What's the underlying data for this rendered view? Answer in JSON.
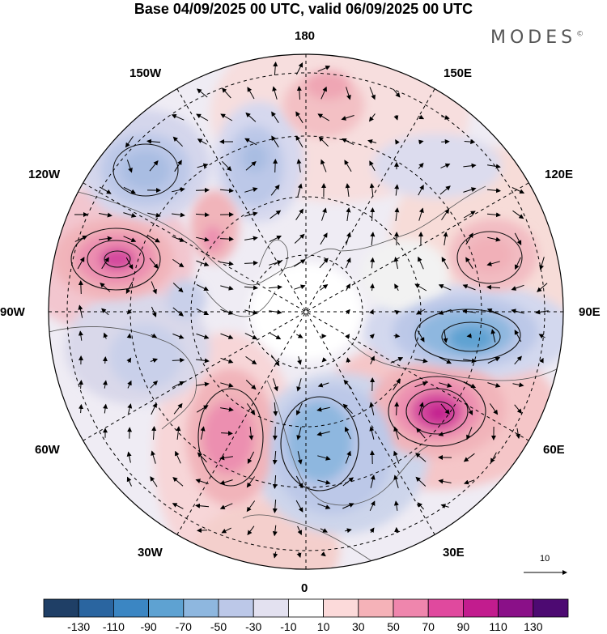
{
  "header": {
    "title": "Base 04/09/2025 00 UTC, valid 06/09/2025 00 UTC",
    "brand": "MODES",
    "brand_mark": "©"
  },
  "map": {
    "projection": "north-polar-stereographic",
    "longitude_labels": {
      "lon_180": "180",
      "lon_150e": "150E",
      "lon_120e": "120E",
      "lon_90e": "90E",
      "lon_60e": "60E",
      "lon_30e": "30E",
      "lon_0": "0",
      "lon_30w": "30W",
      "lon_60w": "60W",
      "lon_90w": "90W",
      "lon_120w": "120W",
      "lon_150w": "150W"
    },
    "reference_vector_label": "10",
    "colors": {
      "neg_strong": "#5a9cc8",
      "neg_mid": "#8fb6dc",
      "neg_light": "#c9d2ea",
      "neg_faint": "#e3e1f0",
      "pos_faint": "#f7dede",
      "pos_light": "#f1b4ba",
      "pos_mid": "#ec8fb0",
      "pos_strong": "#d44a9e",
      "land_neutral": "#ececec"
    }
  },
  "colorbar": {
    "colors": [
      "#1f3f66",
      "#2a65a0",
      "#3b86c3",
      "#5ea2d2",
      "#8eb7df",
      "#bcc8e8",
      "#e3e1f0",
      "#ffffff",
      "#fcdada",
      "#f5b2b8",
      "#ef86ad",
      "#e0499e",
      "#c21c8e",
      "#8a1088",
      "#4d0a72"
    ],
    "tick_labels": [
      "-130",
      "-110",
      "-90",
      "-70",
      "-50",
      "-30",
      "-10",
      "10",
      "30",
      "50",
      "70",
      "90",
      "110",
      "130"
    ]
  }
}
